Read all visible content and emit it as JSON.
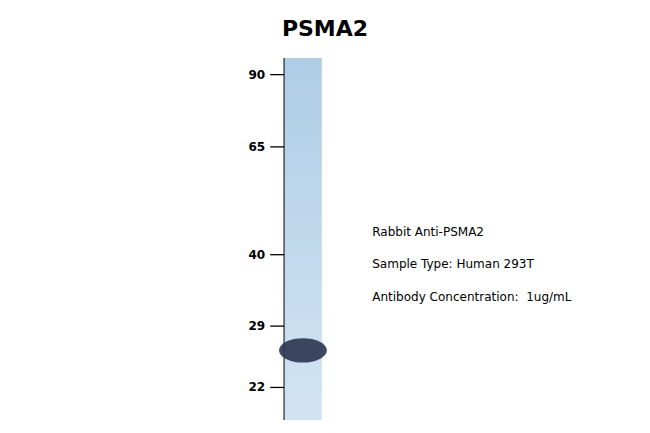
{
  "chart_data": {
    "type": "blot",
    "title": "PSMA2",
    "values": [
      26.0
    ],
    "color": "#2a3550",
    "ylim": [
      19,
      97
    ],
    "yticks": [
      90,
      65,
      40,
      29,
      22
    ],
    "log": "y",
    "tick_labels": "y",
    "annotations": [
      "Rabbit Anti-PSMA2",
      "Sample Type: Human 293T",
      "Antibody Concentration:  1ug/mL"
    ]
  }
}
